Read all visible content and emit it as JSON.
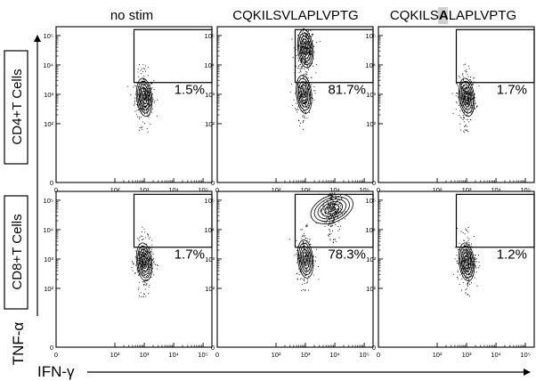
{
  "chart_data": {
    "type": "scatter",
    "x_axis_label": "IFN-γ",
    "y_axis_label": "TNF-α",
    "x_ticks": [
      "0",
      "10²",
      "10³",
      "10⁴",
      "10⁵"
    ],
    "y_ticks": [
      "0",
      "10²",
      "10³",
      "10⁴",
      "10⁵"
    ],
    "column_labels": [
      {
        "parts": [
          {
            "text": "no stim",
            "highlight": false
          }
        ]
      },
      {
        "parts": [
          {
            "text": "CQKILSVLAPLVPTG",
            "highlight": false
          }
        ]
      },
      {
        "parts": [
          {
            "text": "CQKILS",
            "highlight": false
          },
          {
            "text": "A",
            "highlight": true
          },
          {
            "text": "LAPLVPTG",
            "highlight": false
          }
        ]
      }
    ],
    "row_labels": [
      "CD4+T Cells",
      "CD8+T Cells"
    ],
    "panels": [
      {
        "row": 0,
        "col": 0,
        "percent": "1.5%",
        "pop": [
          {
            "x": 3.0,
            "y": 2.9
          }
        ],
        "gate": {
          "x": [
            2.65,
            5.3
          ],
          "y": [
            3.4,
            5.2
          ]
        }
      },
      {
        "row": 0,
        "col": 1,
        "percent": "81.7%",
        "pop": [
          {
            "x": 3.0,
            "y": 4.55
          },
          {
            "x": 2.95,
            "y": 3.0
          }
        ],
        "gate": {
          "x": [
            2.65,
            5.3
          ],
          "y": [
            3.4,
            5.2
          ]
        }
      },
      {
        "row": 0,
        "col": 2,
        "percent": "1.7%",
        "pop": [
          {
            "x": 3.0,
            "y": 2.9
          }
        ],
        "gate": {
          "x": [
            2.65,
            5.3
          ],
          "y": [
            3.4,
            5.2
          ]
        }
      },
      {
        "row": 1,
        "col": 0,
        "percent": "1.7%",
        "pop": [
          {
            "x": 3.0,
            "y": 2.9
          }
        ],
        "gate": {
          "x": [
            2.65,
            5.3
          ],
          "y": [
            3.4,
            5.2
          ]
        }
      },
      {
        "row": 1,
        "col": 1,
        "percent": "78.3%",
        "pop": [
          {
            "x": 3.9,
            "y": 4.7
          },
          {
            "x": 3.0,
            "y": 3.0
          }
        ],
        "gate": {
          "x": [
            2.65,
            5.3
          ],
          "y": [
            3.4,
            5.2
          ]
        }
      },
      {
        "row": 1,
        "col": 2,
        "percent": "1.2%",
        "pop": [
          {
            "x": 3.0,
            "y": 2.9
          }
        ],
        "gate": {
          "x": [
            2.65,
            5.3
          ],
          "y": [
            3.4,
            5.2
          ]
        }
      }
    ]
  }
}
